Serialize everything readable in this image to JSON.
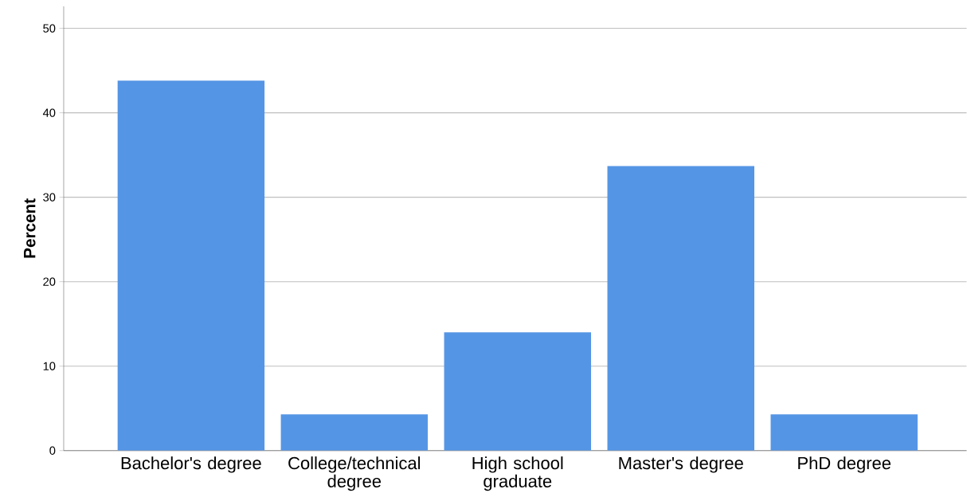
{
  "chart_data": {
    "type": "bar",
    "ylabel": "Percent",
    "categories": [
      "Bachelor's degree",
      "College/technical degree",
      "High school graduate",
      "Master's degree",
      "PhD degree"
    ],
    "values": [
      43.8,
      4.3,
      14.0,
      33.7,
      4.3
    ],
    "color": "#5595e5",
    "ylim": [
      0,
      52.6
    ],
    "yticks": [
      0,
      10,
      20,
      30,
      40,
      50
    ],
    "grid": "y"
  }
}
